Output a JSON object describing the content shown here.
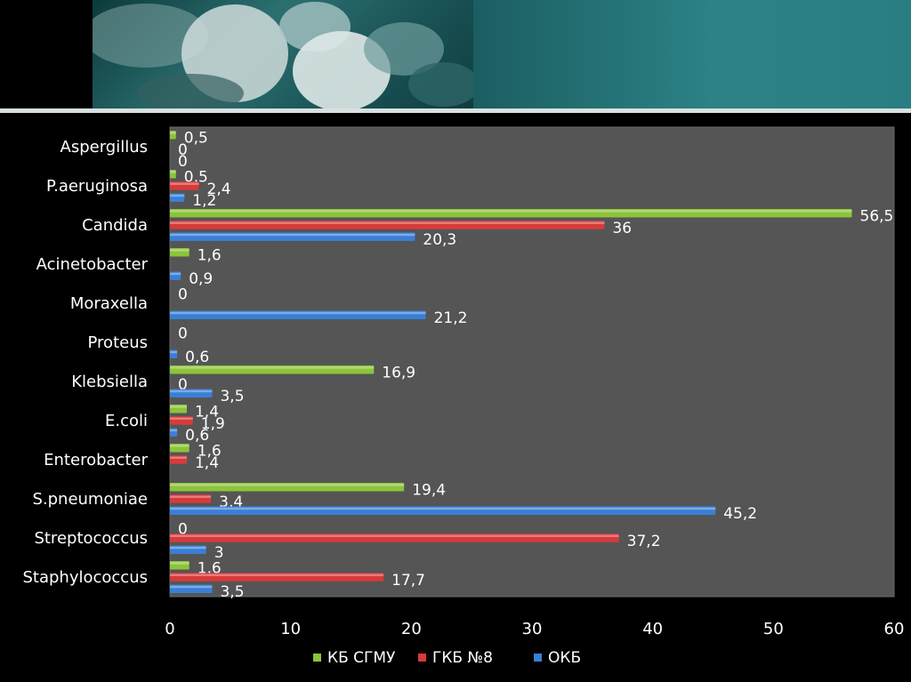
{
  "chart_data": {
    "type": "bar",
    "orientation": "horizontal",
    "categories": [
      "Staphylococcus",
      "Streptococcus",
      "S.pneumoniae",
      "Enterobacter",
      "E.coli",
      "Klebsiella",
      "Proteus",
      "Moraxella",
      "Acinetobacter",
      "Candida",
      "P.aeruginosa",
      "Aspergillus"
    ],
    "series": [
      {
        "name": "КБ СГМУ",
        "color": "#8cc43a",
        "values": [
          1.6,
          0,
          19.4,
          1.6,
          1.4,
          16.9,
          0,
          0,
          1.6,
          56.5,
          0.5,
          0.5
        ],
        "labels": [
          "1,6",
          "0",
          "19,4",
          "1,6",
          "1,4",
          "16,9",
          "0",
          "0",
          "1,6",
          "56,5",
          "0,5",
          "0,5"
        ]
      },
      {
        "name": "ГКБ №8",
        "color": "#d83a3a",
        "values": [
          17.7,
          37.2,
          3.4,
          1.4,
          1.9,
          0,
          null,
          null,
          null,
          36,
          2.4,
          0
        ],
        "labels": [
          "17,7",
          "37,2",
          "3,4",
          "1,4",
          "1,9",
          "0",
          null,
          null,
          null,
          "36",
          "2,4",
          "0"
        ]
      },
      {
        "name": "ОКБ",
        "color": "#3a7fd6",
        "values": [
          3.5,
          3,
          45.2,
          null,
          0.6,
          3.5,
          0.6,
          21.2,
          0.9,
          20.3,
          1.2,
          0
        ],
        "labels": [
          "3,5",
          "3",
          "45,2",
          null,
          "0,6",
          "3,5",
          "0,6",
          "21,2",
          "0,9",
          "20,3",
          "1,2",
          "0"
        ]
      }
    ],
    "xlim": [
      0,
      60
    ],
    "xticks": [
      "0",
      "10",
      "20",
      "30",
      "40",
      "50",
      "60"
    ],
    "grid": false,
    "legend_position": "bottom",
    "plot_background": "#555555"
  }
}
